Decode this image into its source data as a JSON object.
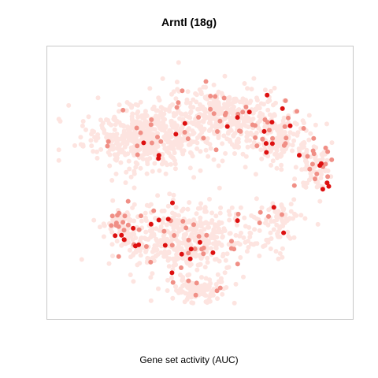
{
  "chart_data": {
    "type": "scatter",
    "title": "Arntl (18g)",
    "xlabel": "Gene set activity (AUC)",
    "ylabel": "",
    "grid": false,
    "legend": "none",
    "color_scale": {
      "low": "#fde4e0",
      "mid": "#f08f86",
      "high": "#dd1010"
    },
    "clusters": [
      {
        "label": "",
        "center": [
          0.3,
          0.68
        ],
        "spread": [
          0.1,
          0.06
        ],
        "count": 520,
        "hot_fraction": 0.03
      },
      {
        "label": "",
        "center": [
          0.58,
          0.76
        ],
        "spread": [
          0.1,
          0.06
        ],
        "count": 380,
        "hot_fraction": 0.06
      },
      {
        "label": "",
        "center": [
          0.77,
          0.68
        ],
        "spread": [
          0.06,
          0.05
        ],
        "count": 160,
        "hot_fraction": 0.1
      },
      {
        "label": "",
        "center": [
          0.9,
          0.56
        ],
        "spread": [
          0.03,
          0.05
        ],
        "count": 90,
        "hot_fraction": 0.18
      },
      {
        "label": "",
        "center": [
          0.45,
          0.28
        ],
        "spread": [
          0.12,
          0.07
        ],
        "count": 520,
        "hot_fraction": 0.08
      },
      {
        "label": "",
        "center": [
          0.22,
          0.34
        ],
        "spread": [
          0.03,
          0.03
        ],
        "count": 60,
        "hot_fraction": 0.22
      },
      {
        "label": "",
        "center": [
          0.78,
          0.35
        ],
        "spread": [
          0.04,
          0.05
        ],
        "count": 70,
        "hot_fraction": 0.08
      },
      {
        "label": "",
        "center": [
          0.5,
          0.08
        ],
        "spread": [
          0.05,
          0.025
        ],
        "count": 110,
        "hot_fraction": 0.03
      }
    ],
    "xlim": [
      0,
      1
    ],
    "ylim": [
      0,
      1
    ]
  }
}
